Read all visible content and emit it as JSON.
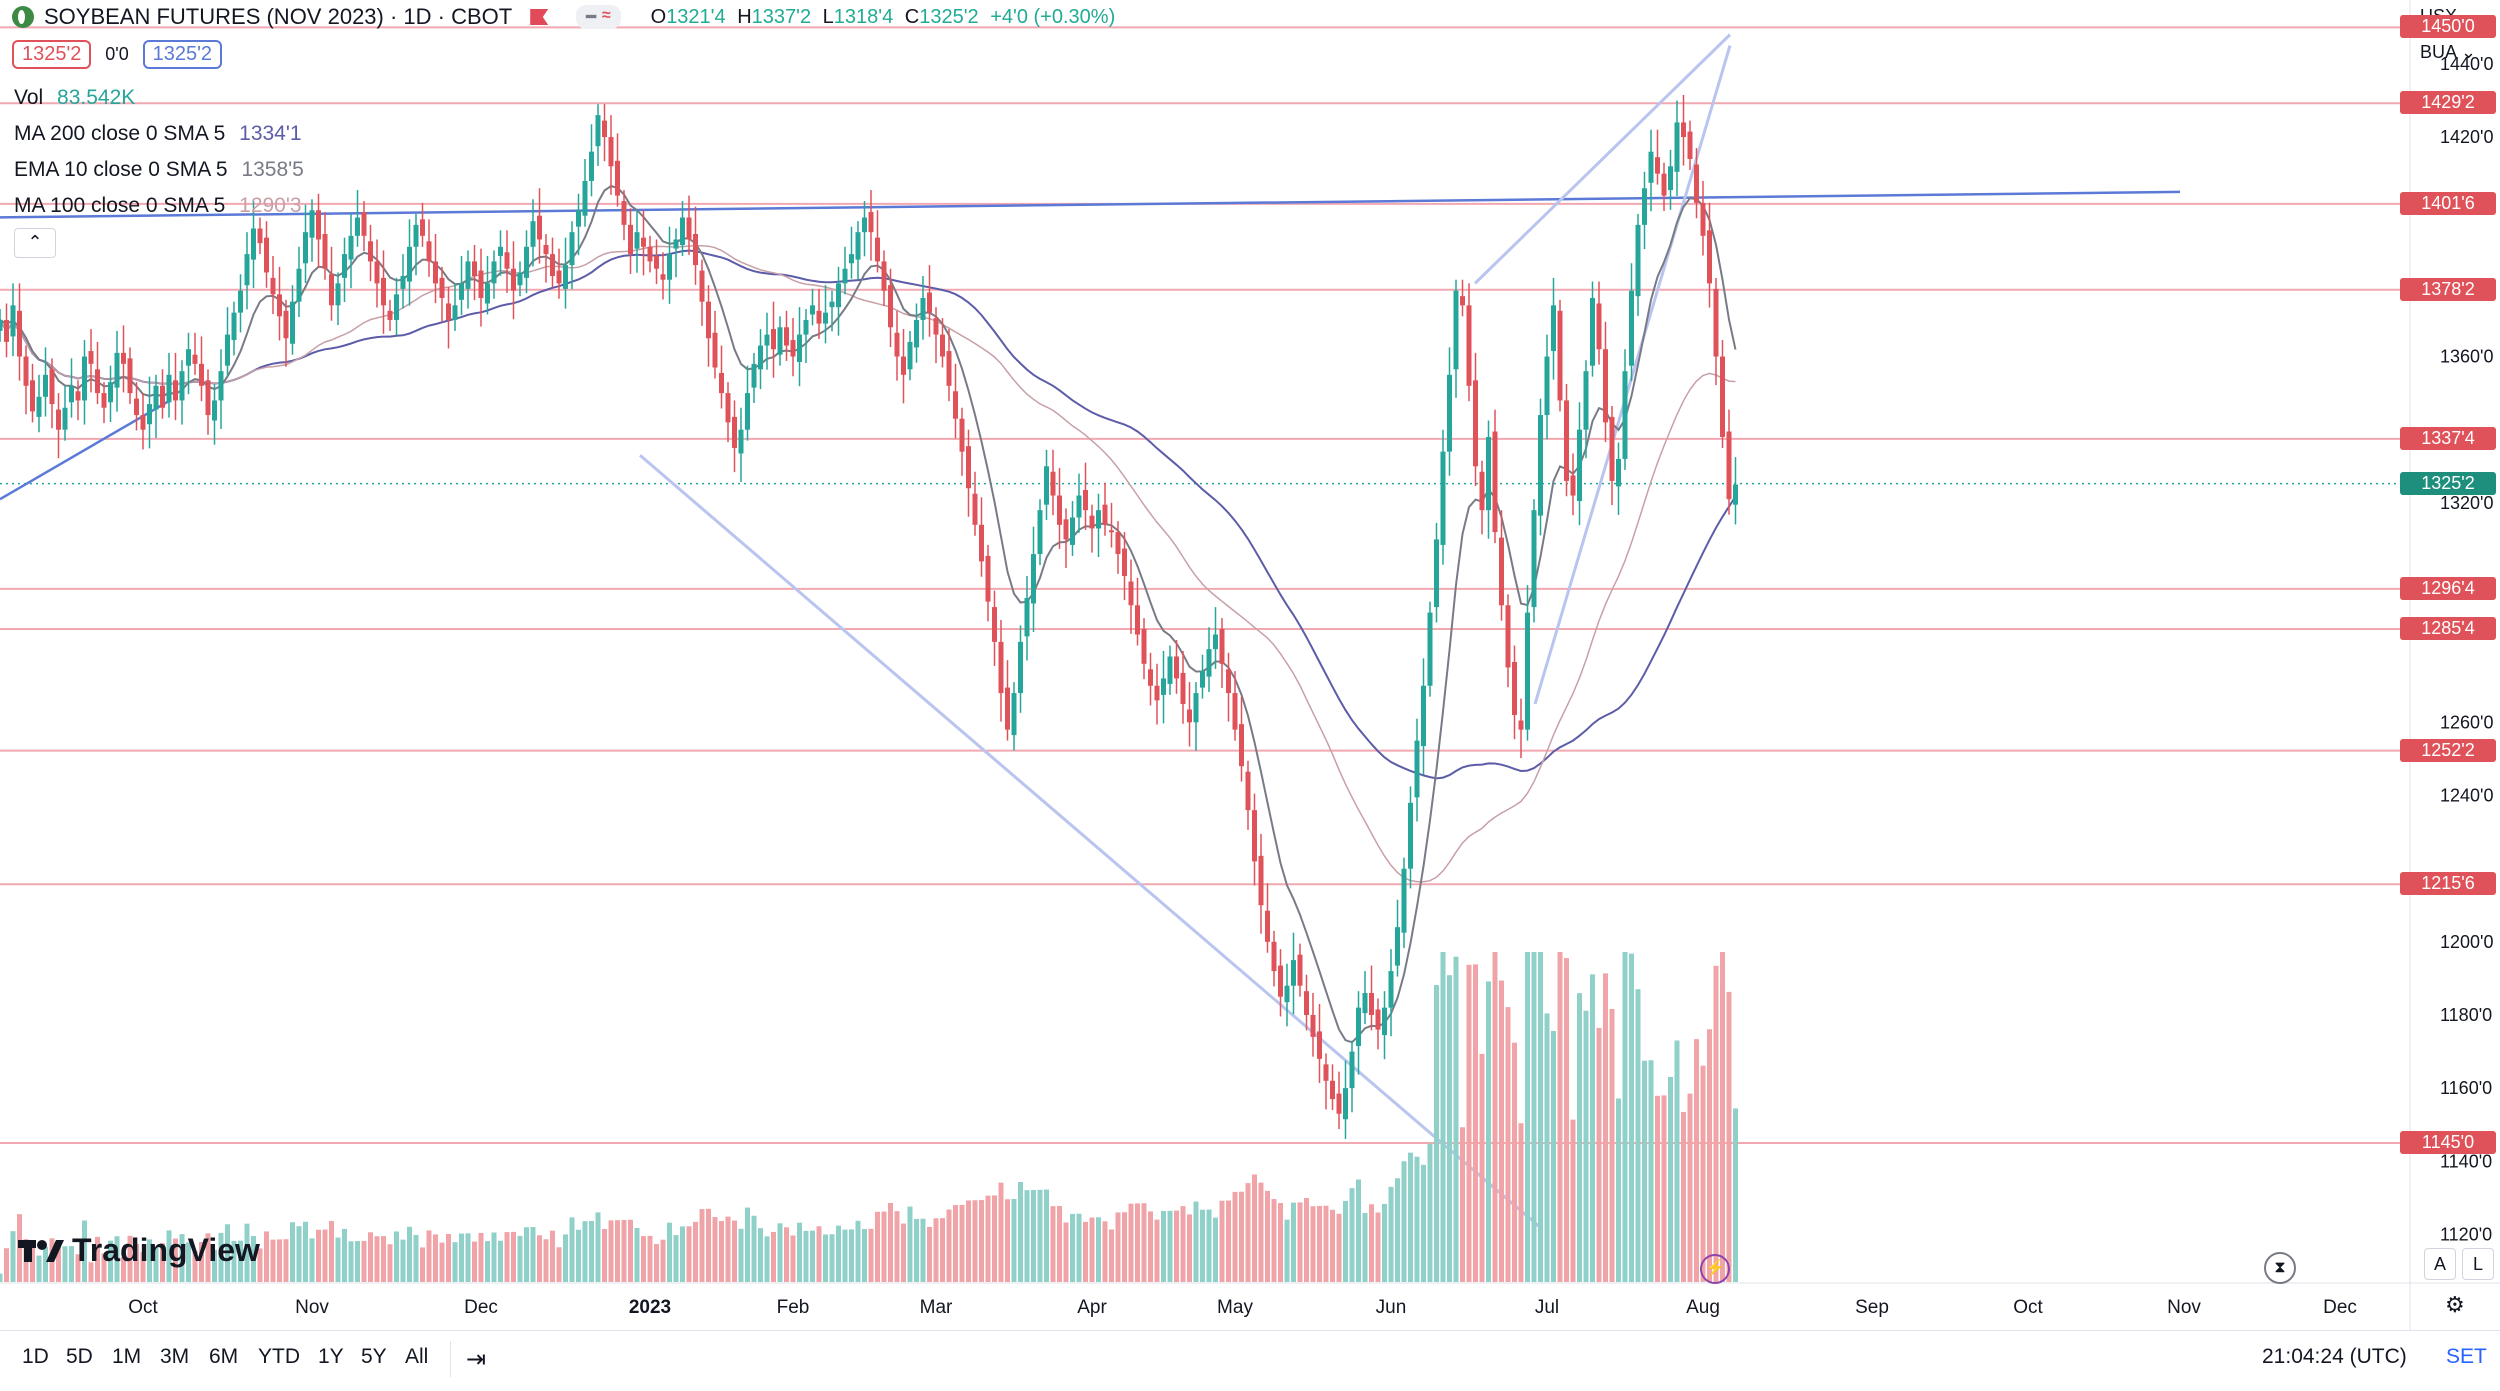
{
  "header": {
    "symbol": "SOYBEAN FUTURES (NOV 2023) · 1D · CBOT",
    "ohlc": {
      "o_label": "O",
      "o": "1321'4",
      "h_label": "H",
      "h": "1337'2",
      "l_label": "L",
      "l": "1318'4",
      "c_label": "C",
      "c": "1325'2",
      "change": "+4'0 (+0.30%)"
    },
    "sell_price": "1325'2",
    "spread": "0'0",
    "buy_price": "1325'2"
  },
  "indicators": {
    "vol_label": "Vol",
    "vol_value": "83.542K",
    "ma200_label": "MA 200 close 0 SMA 5",
    "ma200_value": "1334'1",
    "ema10_label": "EMA 10 close 0 SMA 5",
    "ema10_value": "1358'5",
    "ma100_label": "MA 100 close 0 SMA 5",
    "ma100_value": "1290'3"
  },
  "right_top": {
    "currency": "USX",
    "unit": "BUA"
  },
  "colors": {
    "up": "#26a69a",
    "down": "#e0525a",
    "ma200": "#5c5ca8",
    "ema10": "#787b86",
    "ma100": "#c7a0a6",
    "hline": "#f2a8b0",
    "trend": "#5b79d6",
    "trend_light": "#b9c4ef"
  },
  "chart_data": {
    "type": "candlestick",
    "title": "SOYBEAN FUTURES (NOV 2023) · 1D · CBOT",
    "ylim": [
      1107,
      1452
    ],
    "y_ticks": [
      "1440'0",
      "1420'0",
      "1360'0",
      "1320'0",
      "1260'0",
      "1240'0",
      "1200'0",
      "1180'0",
      "1160'0",
      "1140'0",
      "1120'0"
    ],
    "y_tick_values": [
      1440,
      1420,
      1360,
      1320,
      1260,
      1240,
      1200,
      1180,
      1160,
      1140,
      1120
    ],
    "x_labels": [
      "Oct",
      "Nov",
      "Dec",
      "2023",
      "Feb",
      "Mar",
      "Apr",
      "May",
      "Jun",
      "Jul",
      "Aug",
      "Sep",
      "Oct",
      "Nov",
      "Dec"
    ],
    "x_label_index": [
      22,
      48,
      74,
      100,
      122,
      144,
      168,
      190,
      214,
      238,
      262,
      288,
      312,
      336,
      360
    ],
    "horizontal_levels": [
      {
        "value": 1450,
        "label": "1450'0"
      },
      {
        "value": 1429.25,
        "label": "1429'2"
      },
      {
        "value": 1401.75,
        "label": "1401'6"
      },
      {
        "value": 1378.25,
        "label": "1378'2"
      },
      {
        "value": 1337.5,
        "label": "1337'4"
      },
      {
        "value": 1296.5,
        "label": "1296'4"
      },
      {
        "value": 1285.5,
        "label": "1285'4"
      },
      {
        "value": 1252.25,
        "label": "1252'2"
      },
      {
        "value": 1215.75,
        "label": "1215'6"
      },
      {
        "value": 1145,
        "label": "1145'0"
      }
    ],
    "last_price": {
      "value": 1325.25,
      "label": "1325'2"
    },
    "candle_closes": [
      1370,
      1364,
      1374,
      1360,
      1352,
      1345,
      1349,
      1355,
      1347,
      1340,
      1346,
      1352,
      1348,
      1360,
      1358,
      1350,
      1346,
      1353,
      1361,
      1358,
      1350,
      1344,
      1340,
      1347,
      1352,
      1346,
      1355,
      1348,
      1356,
      1362,
      1358,
      1352,
      1344,
      1348,
      1356,
      1366,
      1372,
      1378,
      1388,
      1395,
      1391,
      1383,
      1377,
      1371,
      1365,
      1375,
      1384,
      1394,
      1400,
      1392,
      1384,
      1374,
      1380,
      1388,
      1393,
      1398,
      1393,
      1386,
      1380,
      1374,
      1370,
      1377,
      1382,
      1390,
      1396,
      1393,
      1386,
      1380,
      1376,
      1370,
      1374,
      1380,
      1386,
      1382,
      1376,
      1380,
      1386,
      1390,
      1384,
      1378,
      1383,
      1390,
      1397,
      1392,
      1388,
      1382,
      1380,
      1385,
      1394,
      1400,
      1408,
      1416,
      1426,
      1420,
      1412,
      1404,
      1396,
      1388,
      1394,
      1390,
      1386,
      1384,
      1381,
      1388,
      1392,
      1398,
      1392,
      1385,
      1375,
      1365,
      1357,
      1350,
      1342,
      1335,
      1340,
      1350,
      1358,
      1363,
      1366,
      1362,
      1368,
      1363,
      1360,
      1366,
      1370,
      1374,
      1369,
      1372,
      1375,
      1380,
      1384,
      1388,
      1394,
      1398,
      1394,
      1386,
      1378,
      1368,
      1360,
      1355,
      1364,
      1370,
      1376,
      1372,
      1366,
      1360,
      1352,
      1343,
      1334,
      1324,
      1314,
      1304,
      1293,
      1282,
      1268,
      1258,
      1268,
      1282,
      1294,
      1306,
      1318,
      1330,
      1322,
      1314,
      1310,
      1316,
      1322,
      1318,
      1313,
      1318,
      1314,
      1312,
      1306,
      1300,
      1292,
      1284,
      1276,
      1270,
      1266,
      1272,
      1278,
      1272,
      1265,
      1260,
      1268,
      1274,
      1280,
      1284,
      1276,
      1268,
      1258,
      1248,
      1236,
      1222,
      1210,
      1200,
      1192,
      1185,
      1188,
      1195,
      1188,
      1180,
      1174,
      1168,
      1162,
      1157,
      1153,
      1160,
      1170,
      1182,
      1186,
      1180,
      1176,
      1182,
      1192,
      1204,
      1220,
      1238,
      1255,
      1270,
      1290,
      1310,
      1334,
      1355,
      1378,
      1374,
      1352,
      1330,
      1318,
      1338,
      1312,
      1292,
      1275,
      1262,
      1258,
      1290,
      1318,
      1344,
      1360,
      1374,
      1348,
      1326,
      1322,
      1340,
      1356,
      1376,
      1362,
      1342,
      1326,
      1332,
      1356,
      1378,
      1396,
      1406,
      1416,
      1410,
      1404,
      1412,
      1424,
      1420,
      1414,
      1402,
      1393,
      1380,
      1360,
      1338,
      1321,
      1325
    ],
    "legend": [
      "MA 200",
      "EMA 10",
      "MA 100"
    ]
  },
  "bottom": {
    "ranges": [
      "1D",
      "5D",
      "1M",
      "3M",
      "6M",
      "YTD",
      "1Y",
      "5Y",
      "All"
    ],
    "time": "21:04:24 (UTC)",
    "session": "SET",
    "scale_a": "A",
    "scale_l": "L"
  },
  "branding": {
    "name": "TradingView"
  }
}
